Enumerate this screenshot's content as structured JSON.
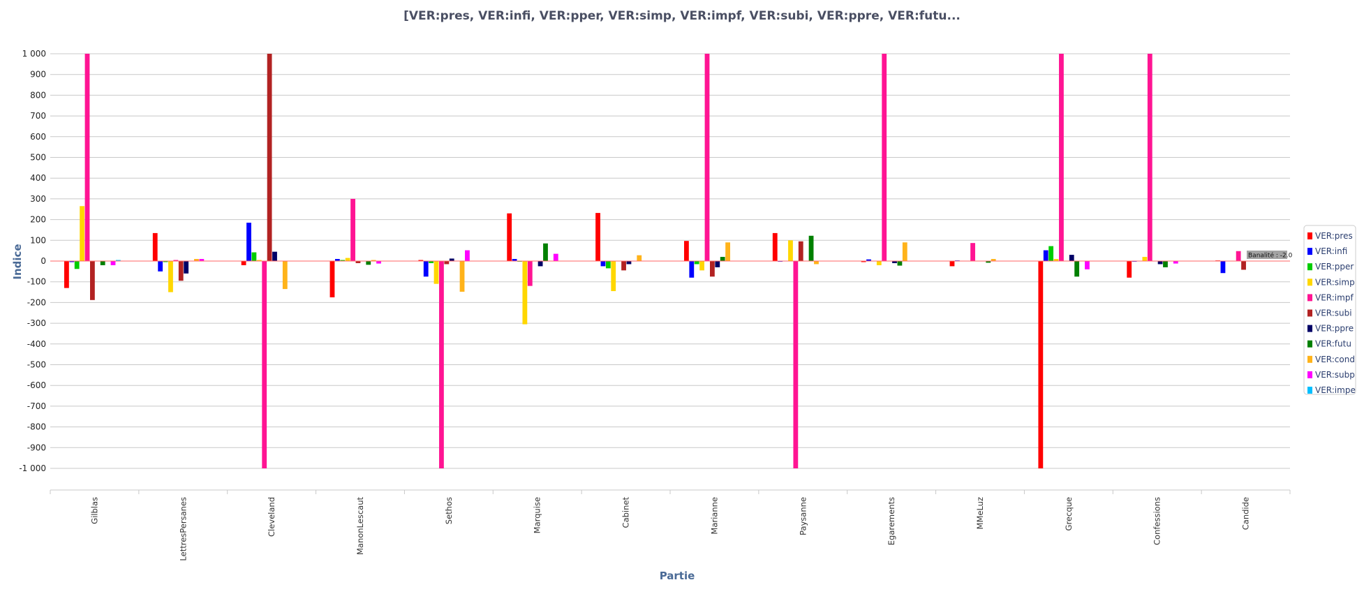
{
  "chart_data": {
    "type": "bar",
    "title": "[VER:pres, VER:infi, VER:pper, VER:simp, VER:impf, VER:subi, VER:ppre, VER:futu...",
    "xlabel": "Partie",
    "ylabel": "Indice",
    "ylim": [
      -1000,
      1000
    ],
    "yticks": [
      "1 000",
      "900",
      "800",
      "700",
      "600",
      "500",
      "400",
      "300",
      "200",
      "100",
      "0",
      "-100",
      "-200",
      "-300",
      "-400",
      "-500",
      "-600",
      "-700",
      "-800",
      "-900",
      "-1 000"
    ],
    "ytick_values": [
      1000,
      900,
      800,
      700,
      600,
      500,
      400,
      300,
      200,
      100,
      0,
      -100,
      -200,
      -300,
      -400,
      -500,
      -600,
      -700,
      -800,
      -900,
      -1000
    ],
    "grid": true,
    "legend_position": "right",
    "categories": [
      "Gilblas",
      "LettresPersanes",
      "Cleveland",
      "ManonLescaut",
      "Sethos",
      "Marquise",
      "Cabinet",
      "Marianne",
      "Paysanne",
      "Egarements",
      "MMeLuz",
      "Grecque",
      "Confessions",
      "Candide"
    ],
    "series": [
      {
        "name": "VER:pres",
        "color": "#ff0000",
        "values": [
          -130,
          135,
          -20,
          -175,
          5,
          230,
          232,
          97,
          135,
          -5,
          -25,
          -1000,
          -80,
          3
        ]
      },
      {
        "name": "VER:infi",
        "color": "#0000ff",
        "values": [
          -5,
          -50,
          185,
          10,
          -75,
          10,
          -25,
          -80,
          -3,
          8,
          3,
          52,
          -3,
          -58
        ]
      },
      {
        "name": "VER:pper",
        "color": "#00cc00",
        "values": [
          -38,
          -5,
          42,
          5,
          -10,
          -3,
          -35,
          -15,
          0,
          0,
          0,
          72,
          0,
          0
        ]
      },
      {
        "name": "VER:simp",
        "color": "#ffd700",
        "values": [
          265,
          -150,
          5,
          15,
          -110,
          -305,
          -145,
          -45,
          100,
          -20,
          0,
          10,
          20,
          0
        ]
      },
      {
        "name": "VER:impf",
        "color": "#ff1493",
        "values": [
          1000,
          5,
          -1000,
          300,
          -1000,
          -120,
          0,
          1000,
          -1000,
          1000,
          87,
          1000,
          1000,
          48
        ]
      },
      {
        "name": "VER:subi",
        "color": "#b22222",
        "values": [
          -188,
          -95,
          1000,
          -10,
          -15,
          0,
          -45,
          -75,
          95,
          0,
          0,
          0,
          0,
          -42
        ]
      },
      {
        "name": "VER:ppre",
        "color": "#000066",
        "values": [
          0,
          -60,
          45,
          0,
          12,
          -25,
          -15,
          -30,
          0,
          -10,
          0,
          30,
          -15,
          0
        ]
      },
      {
        "name": "VER:futu",
        "color": "#008000",
        "values": [
          -20,
          0,
          0,
          -18,
          0,
          85,
          0,
          20,
          122,
          -22,
          -8,
          -75,
          -30,
          0
        ]
      },
      {
        "name": "VER:cond",
        "color": "#ffb31a",
        "values": [
          0,
          10,
          -135,
          5,
          -148,
          0,
          28,
          90,
          -15,
          90,
          10,
          0,
          0,
          0
        ]
      },
      {
        "name": "VER:subp",
        "color": "#ff00ff",
        "values": [
          -20,
          10,
          0,
          -12,
          52,
          35,
          0,
          0,
          0,
          0,
          0,
          -40,
          -12,
          0
        ]
      },
      {
        "name": "VER:impe",
        "color": "#00bfff",
        "values": [
          5,
          0,
          0,
          0,
          0,
          0,
          0,
          0,
          0,
          0,
          0,
          0,
          0,
          0
        ]
      }
    ],
    "annotation": "Banalité : -2.0"
  }
}
